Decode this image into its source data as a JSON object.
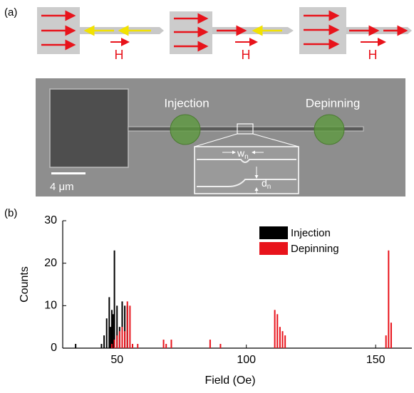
{
  "panel_a": {
    "label": "(a)",
    "field_labels": [
      "H",
      "H",
      "H"
    ],
    "sem": {
      "injection": "Injection",
      "depinning": "Depinning",
      "scale_bar": "4 μm",
      "inset": {
        "width": {
          "symbol": "w",
          "subscript": "n"
        },
        "depth": {
          "symbol": "d",
          "subscript": "n"
        }
      }
    }
  },
  "panel_b": {
    "label": "(b)"
  },
  "chart_data": {
    "type": "bar",
    "xlabel": "Field (Oe)",
    "ylabel": "Counts",
    "xlim": [
      29,
      164
    ],
    "xticks": [
      50,
      100,
      150
    ],
    "ylim": [
      0,
      30
    ],
    "yticks": [
      0,
      10,
      20,
      30
    ],
    "legend": "top-right",
    "series": [
      {
        "name": "Injection",
        "color": "#000000",
        "x": [
          34,
          44,
          45,
          46,
          47,
          47.5,
          48,
          48.5,
          49,
          50,
          51,
          52,
          53,
          54
        ],
        "values": [
          1,
          1,
          3,
          7,
          12,
          5,
          9,
          8,
          23,
          10,
          5,
          11,
          10,
          10
        ]
      },
      {
        "name": "Depinning",
        "color": "#e8131b",
        "x": [
          48,
          49,
          50,
          51,
          52,
          53,
          54,
          55,
          56,
          58,
          68,
          69,
          71,
          86,
          90,
          111,
          112,
          113,
          114,
          115,
          154,
          155,
          156
        ],
        "values": [
          1,
          2,
          3,
          4,
          5,
          4,
          11,
          10,
          1,
          1,
          2,
          1,
          2,
          2,
          1,
          9,
          8,
          5,
          4,
          3,
          3,
          23,
          6
        ]
      }
    ]
  }
}
